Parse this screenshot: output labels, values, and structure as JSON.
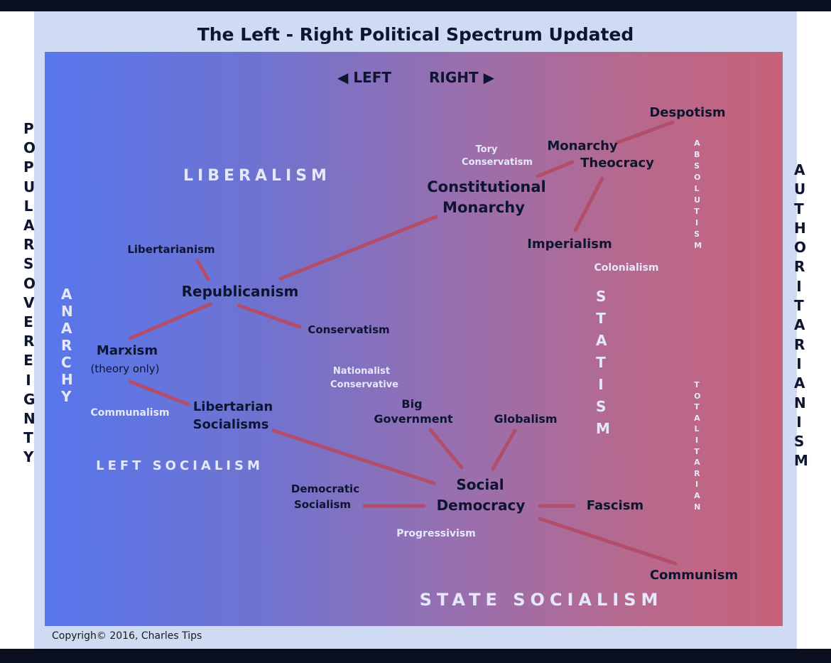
{
  "title": "The Left - Right Political Spectrum Updated",
  "direction": {
    "left": "◀ LEFT",
    "right": "RIGHT ▶"
  },
  "side_labels": {
    "left": "POPULAR SOVEREIGNTY",
    "right": "AUTHORITARIANISM"
  },
  "vertical_labels": {
    "anarchy": "ANARCHY",
    "statism": "STATISM",
    "absolutism": "ABSOLUTISM",
    "totalitarian": "TOTALITARIAN"
  },
  "region_labels": {
    "liberalism": "LIBERALISM",
    "left_socialism": "LEFT SOCIALISM",
    "state_socialism": "STATE SOCIALISM"
  },
  "nodes": {
    "despotism": "Despotism",
    "tory_conservatism": [
      "Tory",
      "Conservatism"
    ],
    "monarchy_theocracy": [
      "Monarchy",
      "Theocracy"
    ],
    "constitutional_monarchy": [
      "Constitutional",
      "Monarchy"
    ],
    "imperialism": "Imperialism",
    "colonialism": "Colonialism",
    "libertarianism": "Libertarianism",
    "republicanism": "Republicanism",
    "conservatism": "Conservatism",
    "marxism": [
      "Marxism",
      "(theory only)"
    ],
    "nationalist_conservative": [
      "Nationalist",
      "Conservative"
    ],
    "communalism": "Communalism",
    "libertarian_socialisms": [
      "Libertarian",
      "Socialisms"
    ],
    "big_government": [
      "Big",
      "Government"
    ],
    "globalism": "Globalism",
    "democratic_socialism": [
      "Democratic",
      "Socialism"
    ],
    "social_democracy": [
      "Social",
      "Democracy"
    ],
    "fascism": "Fascism",
    "progressivism": "Progressivism",
    "communism": "Communism"
  },
  "colors": {
    "connector": "#b24d6c",
    "dark_text": "#0d1530",
    "light_text": "#e4e8fb"
  },
  "copyright": "Copyrigh© 2016, Charles Tips"
}
